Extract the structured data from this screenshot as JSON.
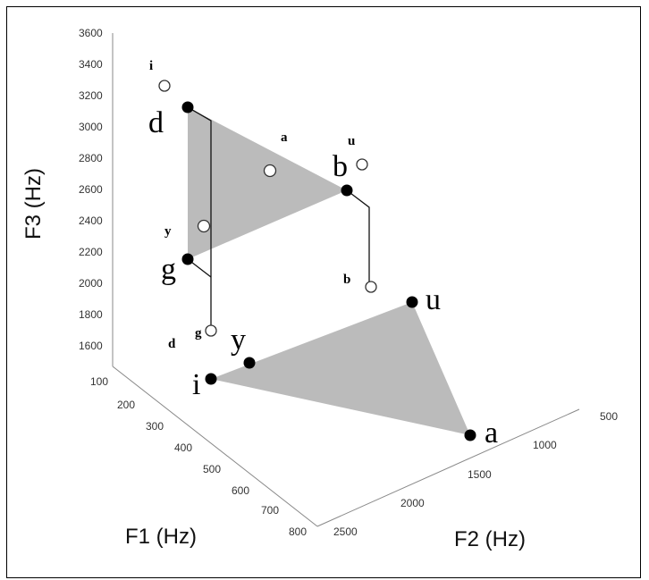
{
  "chart_data": {
    "type": "scatter",
    "projection": "3d",
    "xlabel": "F1 (Hz)",
    "ylabel": "F2 (Hz)",
    "zlabel": "F3 (Hz)",
    "xlim": [
      100,
      800
    ],
    "ylim": [
      500,
      2500
    ],
    "zlim": [
      1500,
      3600
    ],
    "x_ticks": [
      "100",
      "200",
      "300",
      "400",
      "500",
      "600",
      "700",
      "800"
    ],
    "y_ticks": [
      "500",
      "1000",
      "1500",
      "2000",
      "2500"
    ],
    "z_ticks": [
      "1600",
      "1800",
      "2000",
      "2200",
      "2400",
      "2600",
      "2800",
      "3000",
      "3200",
      "3400",
      "3600"
    ],
    "grid": false,
    "legend": "none",
    "series": [
      {
        "marker": "filled",
        "points": [
          {
            "label": "d",
            "F1": 100,
            "F2": 2150,
            "F3": 3200
          },
          {
            "label": "b",
            "F1": 160,
            "F2": 1150,
            "F3": 2700
          },
          {
            "label": "g",
            "F1": 230,
            "F2": 2210,
            "F3": 2250
          },
          {
            "label": "i",
            "F1": 280,
            "F2": 2250,
            "F3": 1550
          },
          {
            "label": "y",
            "F1": 260,
            "F2": 2000,
            "F3": 1620
          },
          {
            "label": "u",
            "F1": 280,
            "F2": 800,
            "F3": 1850
          },
          {
            "label": "a",
            "F1": 720,
            "F2": 1300,
            "F3": 1900
          }
        ]
      },
      {
        "marker": "open",
        "points": [
          {
            "label": "i",
            "F1": 100,
            "F2": 2400,
            "F3": 3400
          },
          {
            "label": "a",
            "F1": 170,
            "F2": 1700,
            "F3": 2900
          },
          {
            "label": "u",
            "F1": 140,
            "F2": 1060,
            "F3": 2850
          },
          {
            "label": "y",
            "F1": 250,
            "F2": 2150,
            "F3": 2450
          },
          {
            "label": "b",
            "F1": 300,
            "F2": 1240,
            "F3": 2200
          },
          {
            "label": "g",
            "F1": 280,
            "F2": 2200,
            "F3": 1580
          },
          {
            "label": "d",
            "F1": 280,
            "F2": 2200,
            "F3": 1580
          }
        ]
      }
    ]
  },
  "colors": {
    "triangle_fill": "#b7b7b7",
    "point_fill": "#000000",
    "open_point_fill": "#ffffff",
    "axis": "#555555"
  }
}
